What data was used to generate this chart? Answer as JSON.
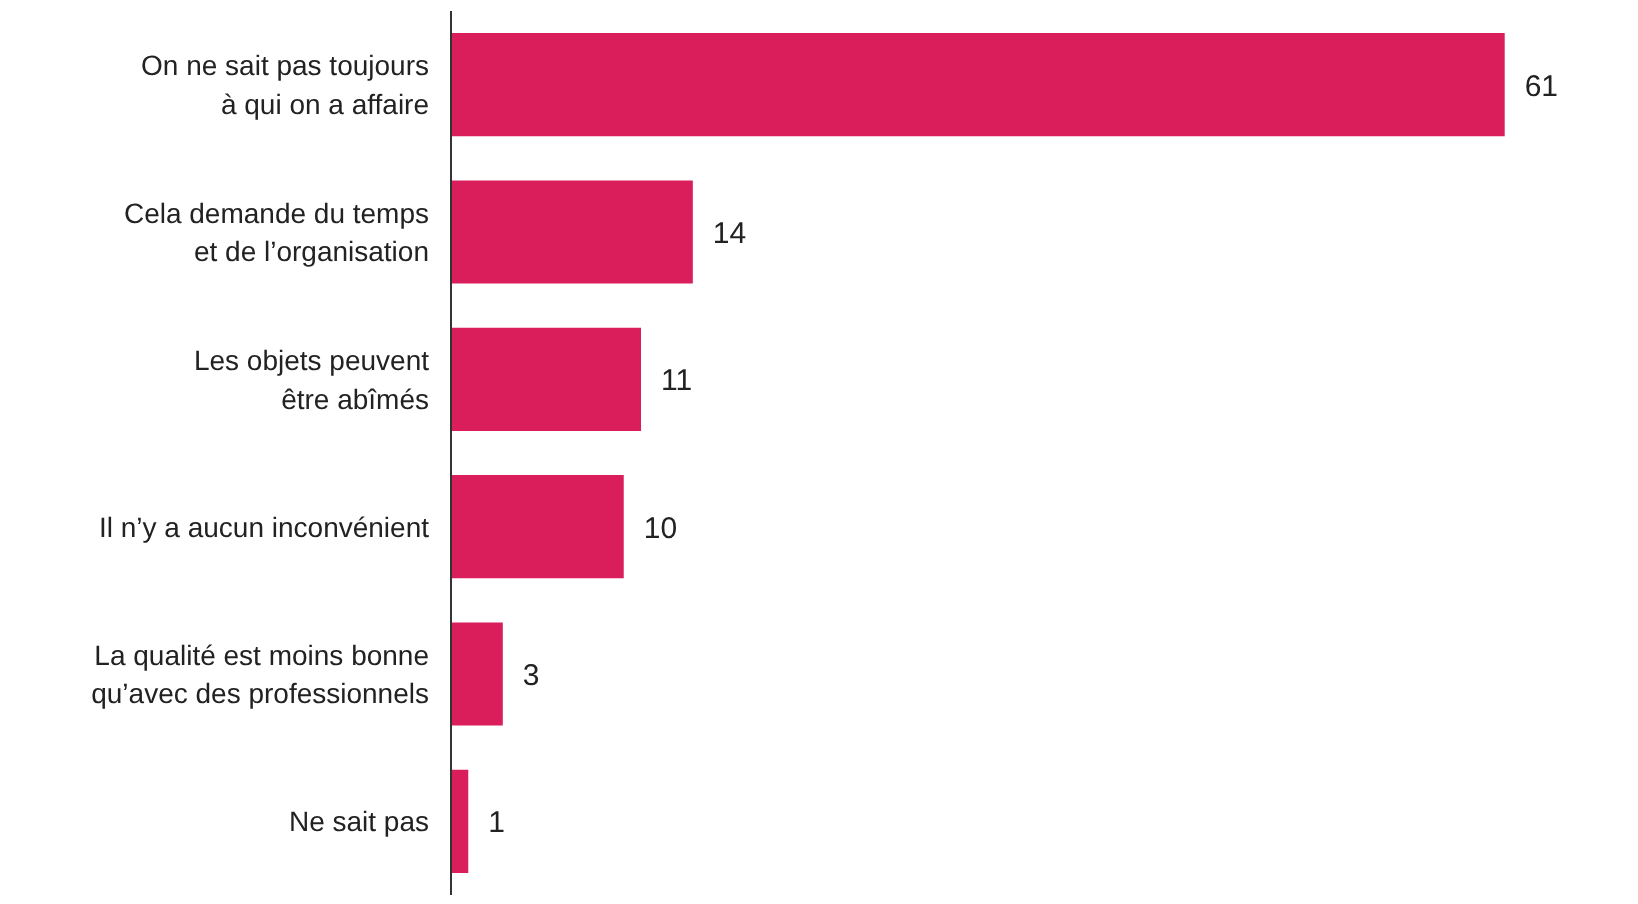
{
  "chart_data": {
    "type": "bar",
    "orientation": "horizontal",
    "data_labels": true,
    "grid": false,
    "categories": [
      "On ne sait pas toujours\nà qui on a affaire",
      "Cela demande du temps\net de l’organisation",
      "Les objets peuvent\nêtre abîmés",
      "Il n’y a aucun inconvénient",
      "La qualité est moins bonne\nqu’avec des professionnels",
      "Ne sait pas"
    ],
    "values": [
      61,
      14,
      11,
      10,
      3,
      1
    ],
    "color": "#d91e5b"
  }
}
